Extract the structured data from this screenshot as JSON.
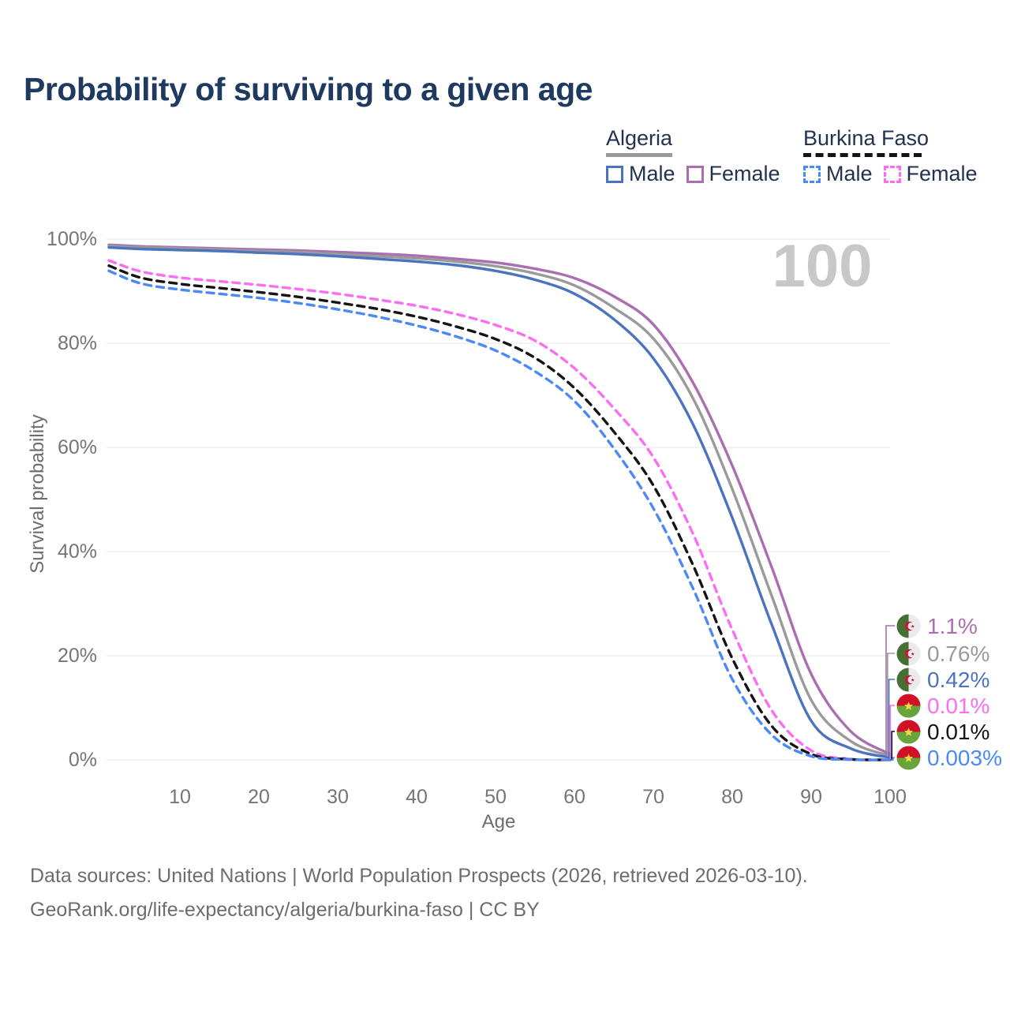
{
  "title": "Probability of surviving to a given age",
  "watermark_age": "100",
  "legend": {
    "groups": [
      {
        "name": "Algeria",
        "line_style": "solid",
        "line_color": "#9a9a9a",
        "items": [
          {
            "label": "Male",
            "color": "#4b73be",
            "style": "solid"
          },
          {
            "label": "Female",
            "color": "#a96fb0",
            "style": "solid"
          }
        ]
      },
      {
        "name": "Burkina Faso",
        "line_style": "dashed",
        "line_color": "#141414",
        "items": [
          {
            "label": "Male",
            "color": "#4b8af5",
            "style": "dashed"
          },
          {
            "label": "Female",
            "color": "#fb6ef2",
            "style": "dashed"
          }
        ]
      }
    ]
  },
  "y_axis": {
    "label": "Survival probability",
    "tick_labels": [
      "0%",
      "20%",
      "40%",
      "60%",
      "80%",
      "100%"
    ],
    "tick_values": [
      0,
      20,
      40,
      60,
      80,
      100
    ]
  },
  "x_axis": {
    "label": "Age",
    "tick_values": [
      10,
      20,
      30,
      40,
      50,
      60,
      70,
      80,
      90,
      100
    ]
  },
  "end_labels": [
    {
      "text": "1.1%",
      "color": "#a96fb0",
      "flag": "algeria",
      "series": "Algeria Female"
    },
    {
      "text": "0.76%",
      "color": "#9a9a9a",
      "flag": "algeria",
      "series": "Algeria Both sexes"
    },
    {
      "text": "0.42%",
      "color": "#4b73be",
      "flag": "algeria",
      "series": "Algeria Male"
    },
    {
      "text": "0.01%",
      "color": "#fb6ef2",
      "flag": "burkina-faso",
      "series": "Burkina Faso Female"
    },
    {
      "text": "0.01%",
      "color": "#141414",
      "flag": "burkina-faso",
      "series": "Burkina Faso Both sexes"
    },
    {
      "text": "0.003%",
      "color": "#4b8af5",
      "flag": "burkina-faso",
      "series": "Burkina Faso Male"
    }
  ],
  "footer": {
    "line1": "Data sources: United Nations | World Population Prospects (2026, retrieved 2026-03-10).",
    "line2": "GeoRank.org/life-expectancy/algeria/burkina-faso | CC BY"
  },
  "flag_colors": {
    "algeria_green": "#456f33",
    "algeria_white": "#ebebeb",
    "algeria_red": "#d21034",
    "bf_red": "#cf1126",
    "bf_green": "#67a53c",
    "bf_yellow": "#f5d547"
  },
  "chart_data": {
    "type": "line",
    "title": "Probability of surviving to a given age",
    "xlabel": "Age",
    "ylabel": "Survival probability",
    "xlim": [
      0,
      100
    ],
    "ylim": [
      0,
      100
    ],
    "grid": "horizontal-only",
    "legend_position": "top-right",
    "hover_age_indicator": 100,
    "x": [
      1,
      5,
      10,
      15,
      20,
      25,
      30,
      35,
      40,
      45,
      50,
      55,
      60,
      65,
      70,
      75,
      80,
      85,
      90,
      95,
      100
    ],
    "series": [
      {
        "name": "Algeria Female",
        "country": "Algeria",
        "sex": "Female",
        "style": "solid",
        "color": "#a96fb0",
        "values": [
          98.9,
          98.6,
          98.4,
          98.2,
          98.0,
          97.8,
          97.5,
          97.2,
          96.8,
          96.2,
          95.5,
          94.3,
          92.5,
          89.0,
          83.6,
          72.5,
          56.5,
          37.0,
          16.5,
          5.5,
          1.1
        ]
      },
      {
        "name": "Algeria Both sexes",
        "country": "Algeria",
        "sex": "Both",
        "style": "solid",
        "color": "#9a9a9a",
        "values": [
          98.7,
          98.4,
          98.2,
          98.0,
          97.7,
          97.5,
          97.1,
          96.7,
          96.3,
          95.7,
          94.8,
          93.4,
          91.1,
          86.8,
          80.9,
          69.5,
          52.0,
          31.5,
          11.5,
          3.6,
          0.76
        ]
      },
      {
        "name": "Algeria Male",
        "country": "Algeria",
        "sex": "Male",
        "style": "solid",
        "color": "#4b73be",
        "values": [
          98.4,
          98.1,
          97.9,
          97.7,
          97.4,
          97.1,
          96.7,
          96.2,
          95.7,
          95.0,
          93.9,
          92.2,
          89.5,
          84.6,
          77.1,
          64.5,
          46.5,
          26.0,
          7.5,
          2.2,
          0.42
        ]
      },
      {
        "name": "Burkina Faso Female",
        "country": "Burkina Faso",
        "sex": "Female",
        "style": "dashed",
        "color": "#fb6ef2",
        "values": [
          95.9,
          93.8,
          92.6,
          91.9,
          91.2,
          90.4,
          89.5,
          88.4,
          87.2,
          85.6,
          83.5,
          80.5,
          75.2,
          67.5,
          58.1,
          43.5,
          25.0,
          9.5,
          1.8,
          0.15,
          0.01
        ]
      },
      {
        "name": "Burkina Faso Both sexes",
        "country": "Burkina Faso",
        "sex": "Both",
        "style": "dashed",
        "color": "#141414",
        "values": [
          94.9,
          92.6,
          91.4,
          90.6,
          89.8,
          88.9,
          87.8,
          86.6,
          85.1,
          83.2,
          80.8,
          77.2,
          71.4,
          63.0,
          52.7,
          37.5,
          19.5,
          6.5,
          1.1,
          0.1,
          0.01
        ]
      },
      {
        "name": "Burkina Faso Male",
        "country": "Burkina Faso",
        "sex": "Male",
        "style": "dashed",
        "color": "#4b8af5",
        "values": [
          93.9,
          91.5,
          90.3,
          89.5,
          88.7,
          87.7,
          86.5,
          85.1,
          83.4,
          81.3,
          78.6,
          74.6,
          68.9,
          59.8,
          48.3,
          33.0,
          15.5,
          4.8,
          0.7,
          0.05,
          0.003
        ]
      }
    ]
  }
}
